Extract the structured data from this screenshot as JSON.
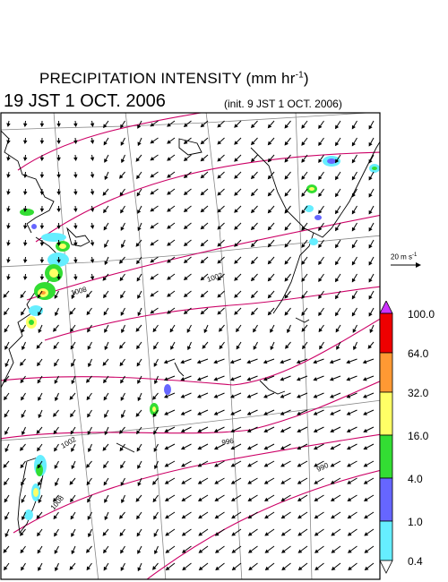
{
  "header": {
    "title_main": "PRECIPITATION INTENSITY (mm hr",
    "title_unit_exp": "-1",
    "title_close": ")",
    "valid_time": "19 JST 1 OCT. 2006",
    "init_time": "(init. 9 JST 1 OCT. 2006)"
  },
  "wind_reference": {
    "label": "20 m s",
    "unit_exp": "-1",
    "speed": 20
  },
  "colorbar": {
    "title": "Precipitation intensity",
    "levels": [
      "100.0",
      "64.0",
      "32.0",
      "16.0",
      "4.0",
      "1.0",
      "0.4"
    ],
    "colors": {
      "above": "#cc33ff",
      "64-100": "#ee0000",
      "32-64": "#ff9933",
      "16-32": "#ffff66",
      "4-16": "#33dd33",
      "1-4": "#6666ff",
      "0.4-1": "#66eeff",
      "below": "#ffffff"
    }
  },
  "isobars": {
    "labels": [
      "1008",
      "1002",
      "1002",
      "1002",
      "996",
      "990",
      "1008"
    ],
    "color": "#cc0066"
  },
  "map": {
    "coast_color": "#000000",
    "grid_color": "#888888"
  }
}
